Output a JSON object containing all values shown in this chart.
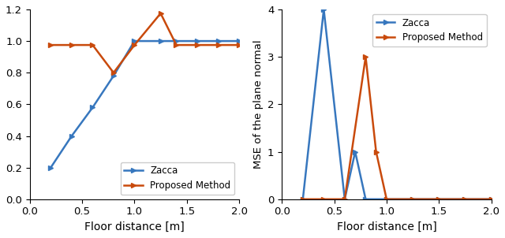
{
  "left": {
    "zacca_x": [
      0.2,
      0.4,
      0.6,
      0.8,
      1.0,
      1.25,
      1.4,
      1.6,
      1.8,
      2.0
    ],
    "zacca_y": [
      0.2,
      0.4,
      0.58,
      0.78,
      1.0,
      1.0,
      1.0,
      1.0,
      1.0,
      1.0
    ],
    "proposed_x": [
      0.2,
      0.4,
      0.6,
      0.8,
      1.0,
      1.25,
      1.4,
      1.6,
      1.8,
      2.0
    ],
    "proposed_y": [
      0.975,
      0.975,
      0.975,
      0.8,
      0.975,
      1.175,
      0.975,
      0.975,
      0.975,
      0.975
    ],
    "xlabel": "Floor distance [m]",
    "ylabel": "",
    "xlim": [
      0,
      2
    ],
    "ylim": [
      0,
      1.2
    ],
    "yticks": [
      0,
      0.2,
      0.4,
      0.6,
      0.8,
      1.0,
      1.2
    ],
    "xticks": [
      0,
      0.5,
      1,
      1.5,
      2
    ]
  },
  "right": {
    "zacca_x": [
      0.2,
      0.4,
      0.6,
      0.7,
      0.8,
      1.0,
      1.25,
      1.5,
      1.75,
      2.0
    ],
    "zacca_y": [
      0.0,
      4.0,
      0.0,
      1.0,
      0.0,
      0.0,
      0.0,
      0.0,
      0.0,
      0.0
    ],
    "proposed_x": [
      0.2,
      0.4,
      0.6,
      0.8,
      0.9,
      1.0,
      1.25,
      1.5,
      1.75,
      2.0
    ],
    "proposed_y": [
      0.0,
      0.0,
      0.0,
      3.0,
      1.0,
      0.0,
      0.0,
      0.0,
      0.0,
      0.0
    ],
    "xlabel": "Floor distance [m]",
    "ylabel": "MSE of the plane normal",
    "xlim": [
      0,
      2
    ],
    "ylim": [
      0,
      4
    ],
    "yticks": [
      0,
      1,
      2,
      3,
      4
    ],
    "xticks": [
      0,
      0.5,
      1,
      1.5,
      2
    ]
  },
  "zacca_color": "#3777be",
  "proposed_color": "#c94a0c",
  "zacca_label": "Zacca",
  "proposed_label": "Proposed Method",
  "marker": ">",
  "markersize": 4,
  "linewidth": 1.8
}
